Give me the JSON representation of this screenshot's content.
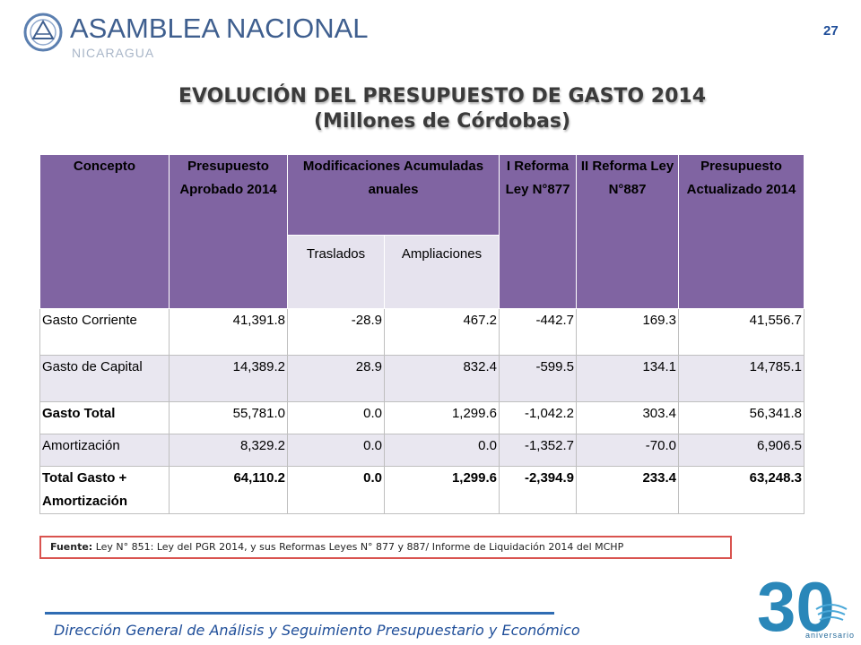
{
  "header": {
    "org_name": "ASAMBLEA NACIONAL",
    "org_country": "NICARAGUA",
    "page_number": "27"
  },
  "title": {
    "line1": "EVOLUCIÓN DEL PRESUPUESTO DE GASTO 2014",
    "line2": "(Millones de Córdobas)"
  },
  "table": {
    "headers": {
      "concept": "Concepto",
      "approved": "Presupuesto Aprobado 2014",
      "modifications": "Modificaciones Acumuladas anuales",
      "reform1": "I Reforma Ley N°877",
      "reform2": "II Reforma Ley N°887",
      "updated": "Presupuesto Actualizado 2014",
      "transfers": "Traslados",
      "expansions": "Ampliaciones"
    },
    "rows": [
      {
        "concept": "Gasto Corriente",
        "approved": "41,391.8",
        "transfers": "-28.9",
        "expansions": "467.2",
        "reform1": "-442.7",
        "reform2": "169.3",
        "updated": "41,556.7"
      },
      {
        "concept": "Gasto de Capital",
        "approved": "14,389.2",
        "transfers": "28.9",
        "expansions": "832.4",
        "reform1": "-599.5",
        "reform2": "134.1",
        "updated": "14,785.1"
      },
      {
        "concept": "Gasto Total",
        "approved": "55,781.0",
        "transfers": "0.0",
        "expansions": "1,299.6",
        "reform1": "-1,042.2",
        "reform2": "303.4",
        "updated": "56,341.8"
      },
      {
        "concept": "Amortización",
        "approved": "8,329.2",
        "transfers": "0.0",
        "expansions": "0.0",
        "reform1": "-1,352.7",
        "reform2": "-70.0",
        "updated": "6,906.5"
      },
      {
        "concept": "Total Gasto + Amortización",
        "approved": "64,110.2",
        "transfers": "0.0",
        "expansions": "1,299.6",
        "reform1": "-2,394.9",
        "reform2": "233.4",
        "updated": "63,248.3"
      }
    ]
  },
  "source": {
    "label": "Fuente:",
    "text": " Ley N° 851: Ley del PGR 2014,  y sus Reformas Leyes N° 877 y 887/ Informe de Liquidación 2014 del MCHP"
  },
  "footer": {
    "text": "Dirección General de Análisis y Seguimiento Presupuestario y Económico"
  },
  "anniversary": {
    "number": "30",
    "label": "aniversario"
  },
  "colors": {
    "header_purple": "#8064a2",
    "row_alt": "#e9e7f0",
    "source_border": "#d9534f",
    "footer_blue": "#1f4e99"
  }
}
